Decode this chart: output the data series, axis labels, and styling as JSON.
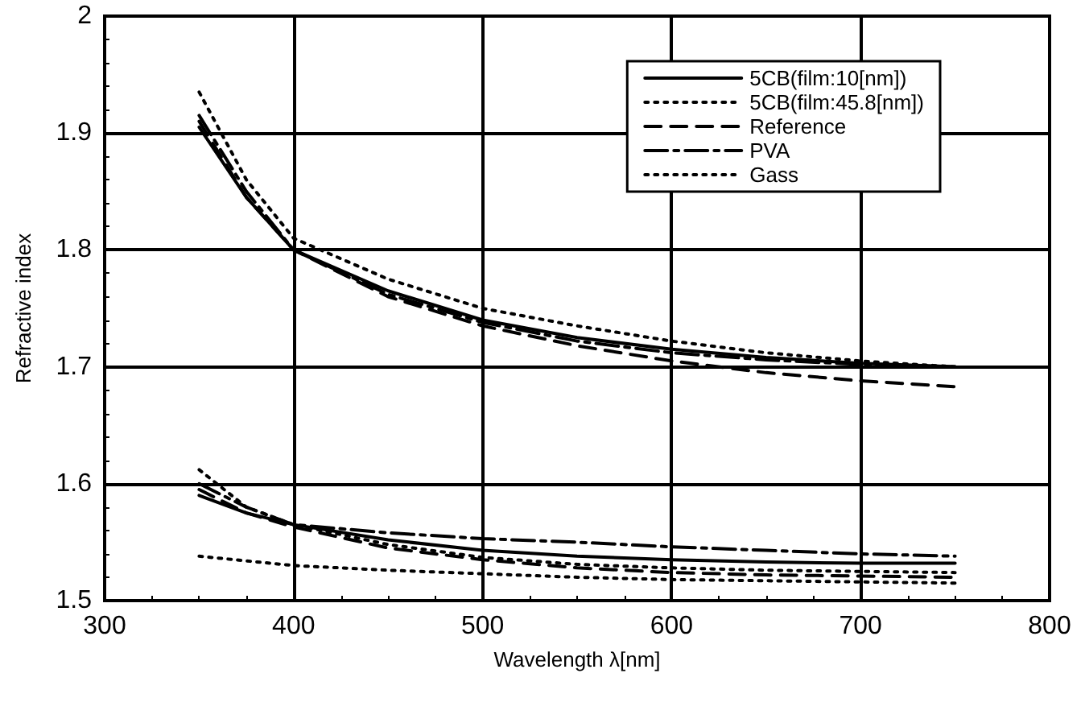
{
  "chart_data": {
    "type": "line",
    "xlabel": "Wavelength λ[nm]",
    "ylabel": "Refractive index",
    "x": [
      350,
      375,
      400,
      450,
      500,
      550,
      600,
      650,
      700,
      750
    ],
    "series": [
      {
        "name": "5CB(film:10[nm])",
        "color": "#000000",
        "line_style": "solid",
        "values": [
          1.905,
          1.845,
          1.8,
          1.765,
          1.74,
          1.725,
          1.715,
          1.708,
          1.703,
          1.7
        ]
      },
      {
        "name": "5CB(film:45.8[nm])",
        "color": "#000000",
        "line_style": "dotted",
        "values": [
          1.935,
          1.86,
          1.81,
          1.775,
          1.75,
          1.735,
          1.722,
          1.712,
          1.705,
          1.7
        ]
      },
      {
        "name": "Reference",
        "color": "#000000",
        "line_style": "dashed",
        "values": [
          1.91,
          1.845,
          1.8,
          1.76,
          1.735,
          1.718,
          1.705,
          1.695,
          1.688,
          1.683
        ]
      },
      {
        "name": "PVA",
        "color": "#000000",
        "line_style": "dashdot",
        "values": [
          1.915,
          1.85,
          1.8,
          1.762,
          1.738,
          1.722,
          1.712,
          1.706,
          1.702,
          1.7
        ]
      },
      {
        "name": "Gass",
        "color": "#000000",
        "line_style": "dotted",
        "values": [
          1.538,
          1.534,
          1.53,
          1.526,
          1.523,
          1.52,
          1.518,
          1.517,
          1.516,
          1.515
        ]
      },
      {
        "color": "#000000",
        "line_style": "solid",
        "values": [
          1.59,
          1.575,
          1.565,
          1.552,
          1.543,
          1.538,
          1.535,
          1.533,
          1.532,
          1.532
        ]
      },
      {
        "color": "#000000",
        "line_style": "dotted",
        "values": [
          1.612,
          1.58,
          1.565,
          1.548,
          1.537,
          1.531,
          1.528,
          1.526,
          1.525,
          1.524
        ]
      },
      {
        "color": "#000000",
        "line_style": "dashed",
        "values": [
          1.595,
          1.575,
          1.563,
          1.545,
          1.535,
          1.528,
          1.524,
          1.522,
          1.521,
          1.52
        ]
      },
      {
        "color": "#000000",
        "line_style": "dashdot",
        "values": [
          1.6,
          1.58,
          1.565,
          1.558,
          1.553,
          1.55,
          1.546,
          1.543,
          1.54,
          1.538
        ]
      }
    ],
    "xlim": [
      300,
      800
    ],
    "xticks": [
      300,
      400,
      500,
      600,
      700,
      800
    ],
    "ylim": [
      1.5,
      2
    ],
    "yticks": [
      1.5,
      1.6,
      1.7,
      1.8,
      1.9,
      2
    ],
    "grid": true,
    "legend": "top right",
    "marker": "none"
  }
}
